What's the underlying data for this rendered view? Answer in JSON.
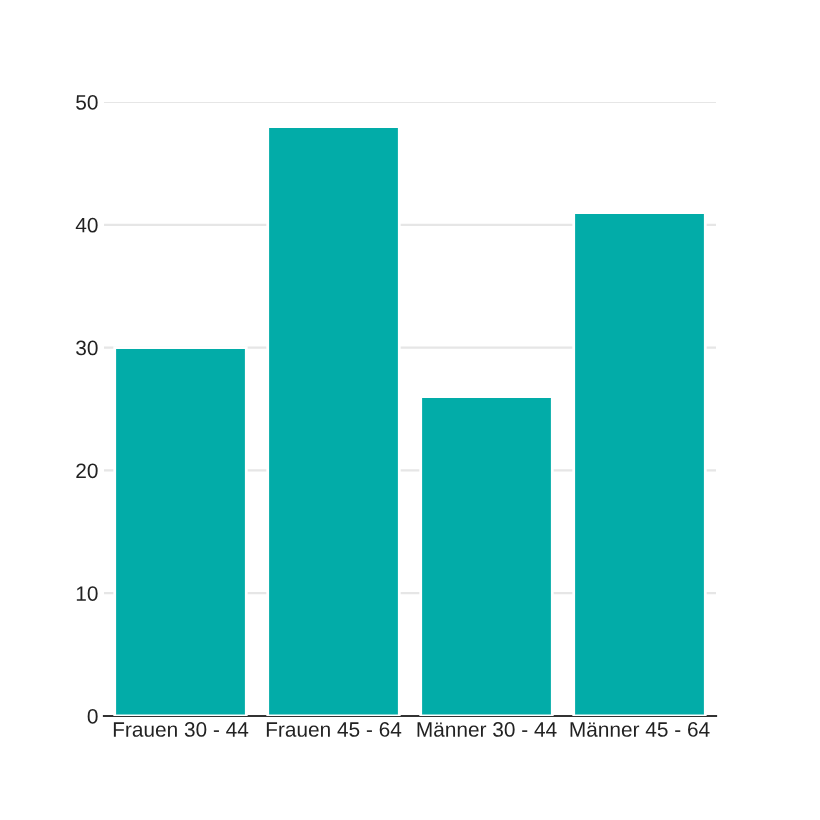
{
  "chart_data": {
    "type": "bar",
    "categories": [
      "Frauen 30 - 44",
      "Frauen 45 - 64",
      "Männer 30 - 44",
      "Männer 45 - 64"
    ],
    "values": [
      30,
      48,
      26,
      41
    ],
    "color": "#02aca8",
    "ylim": [
      0,
      50
    ],
    "yticks": [
      0,
      10,
      20,
      30,
      40,
      50
    ],
    "grid": "y"
  }
}
